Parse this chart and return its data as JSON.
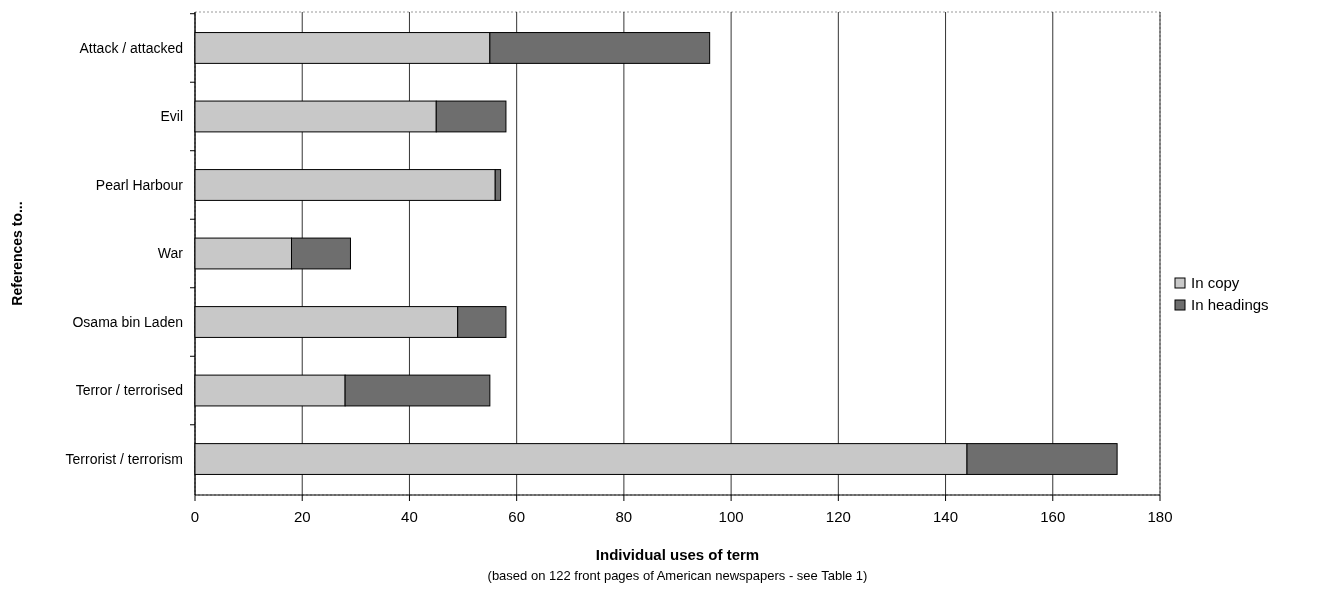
{
  "chart_data": {
    "type": "bar",
    "orientation": "horizontal",
    "stacked": true,
    "categories": [
      "Attack / attacked",
      "Evil",
      "Pearl Harbour",
      "War",
      "Osama bin Laden",
      "Terror / terrorised",
      "Terrorist / terrorism"
    ],
    "series": [
      {
        "name": "In copy",
        "color": "#c8c8c8",
        "values": [
          55,
          45,
          56,
          18,
          49,
          28,
          144
        ]
      },
      {
        "name": "In headings",
        "color": "#6e6e6e",
        "values": [
          41,
          13,
          1,
          11,
          9,
          27,
          28
        ]
      }
    ],
    "xlim": [
      0,
      180
    ],
    "xticks": [
      0,
      20,
      40,
      60,
      80,
      100,
      120,
      140,
      160,
      180
    ],
    "xlabel": "Individual uses of term",
    "ylabel": "References to...",
    "annotations": [
      "(based on 122 front pages of American newspapers - see Table 1)"
    ],
    "grid": "x",
    "legend": "right"
  }
}
